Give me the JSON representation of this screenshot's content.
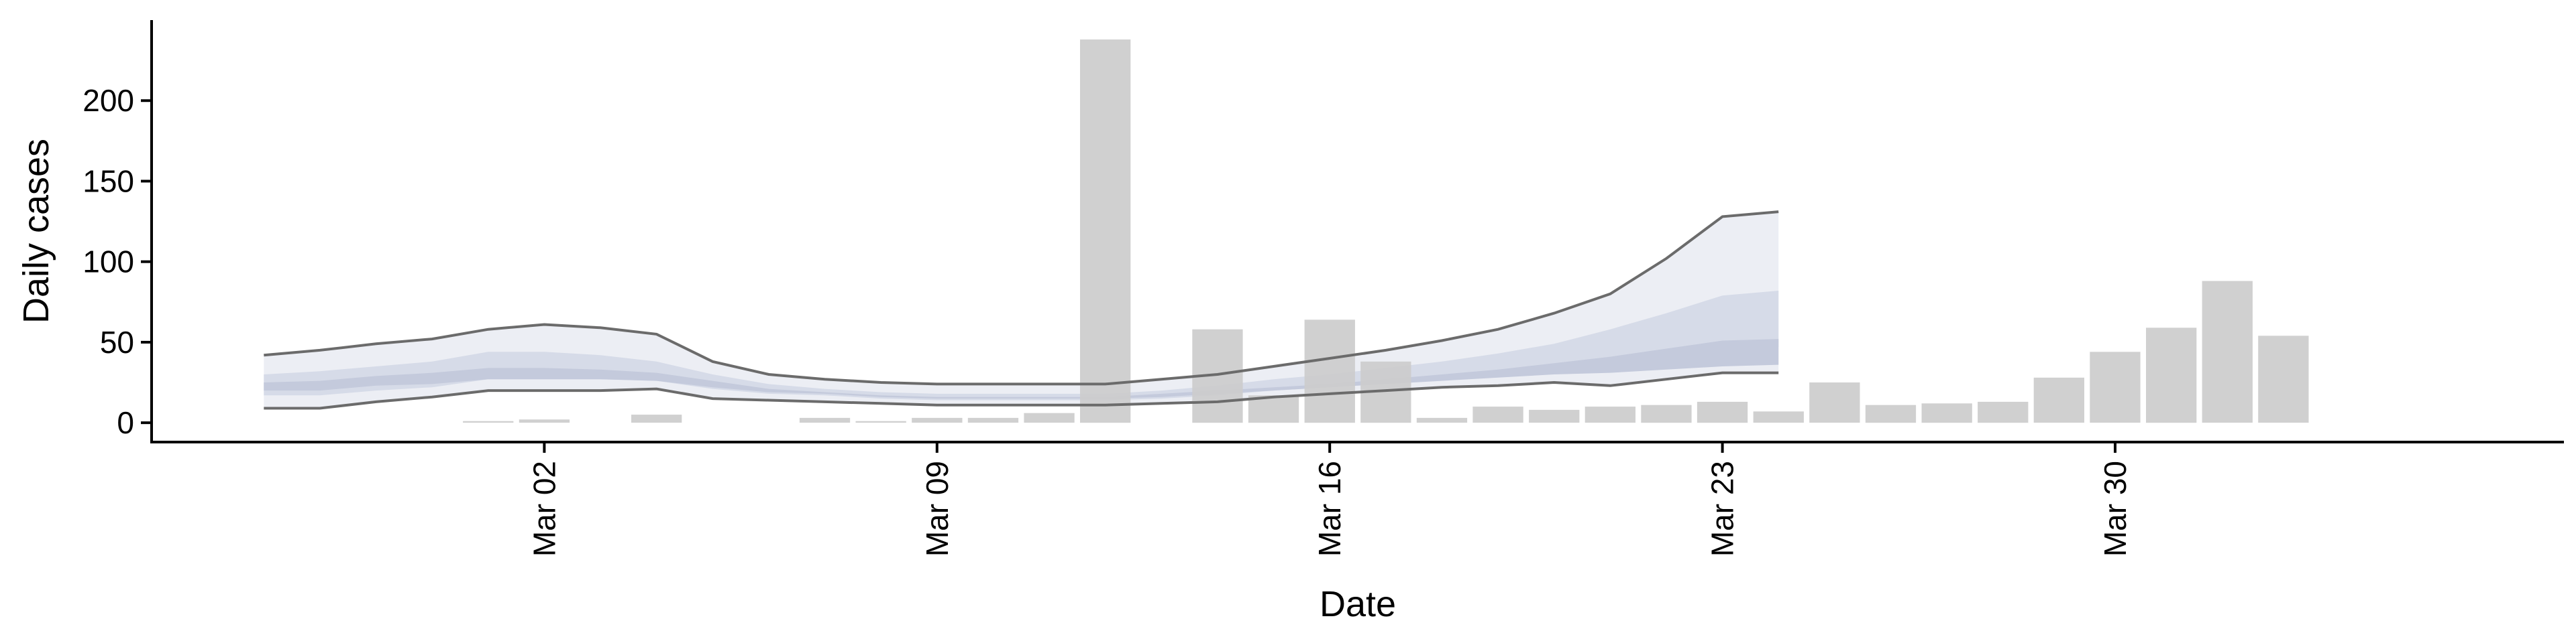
{
  "chart_data": {
    "type": "bar",
    "title": "",
    "xlabel": "Date",
    "ylabel": "Daily cases",
    "x_tick_labels": [
      "Mar 02",
      "Mar 09",
      "Mar 16",
      "Mar 23",
      "Mar 30"
    ],
    "x_tick_dates": [
      "2020-03-02",
      "2020-03-09",
      "2020-03-16",
      "2020-03-23",
      "2020-03-30"
    ],
    "y_ticks": [
      0,
      50,
      100,
      150,
      200
    ],
    "ylim": [
      -12,
      250
    ],
    "xlim": [
      "2020-02-24",
      "2020-04-07"
    ],
    "grid": false,
    "legend": "none",
    "bars": {
      "name": "",
      "color": "#cccccc",
      "dates": [
        "2020-02-27",
        "2020-02-28",
        "2020-03-01",
        "2020-03-02",
        "2020-03-03",
        "2020-03-04",
        "2020-03-05",
        "2020-03-06",
        "2020-03-07",
        "2020-03-08",
        "2020-03-09",
        "2020-03-10",
        "2020-03-11",
        "2020-03-12",
        "2020-03-13",
        "2020-03-14",
        "2020-03-15",
        "2020-03-16",
        "2020-03-17",
        "2020-03-18",
        "2020-03-19",
        "2020-03-20",
        "2020-03-21",
        "2020-03-22",
        "2020-03-23",
        "2020-03-24",
        "2020-03-25",
        "2020-03-26",
        "2020-03-27",
        "2020-03-28",
        "2020-03-29",
        "2020-03-30",
        "2020-03-31",
        "2020-04-01",
        "2020-04-02",
        "2020-04-03"
      ],
      "values": [
        0,
        0,
        1,
        2,
        0,
        5,
        0,
        0,
        3,
        1,
        3,
        3,
        6,
        238,
        0,
        58,
        17,
        64,
        38,
        3,
        10,
        8,
        10,
        11,
        13,
        7,
        25,
        11,
        12,
        13,
        28,
        44,
        59,
        88,
        54,
        0
      ]
    },
    "estimate": {
      "dates": [
        "2020-02-26",
        "2020-02-27",
        "2020-02-28",
        "2020-02-29",
        "2020-03-01",
        "2020-03-02",
        "2020-03-03",
        "2020-03-04",
        "2020-03-05",
        "2020-03-06",
        "2020-03-07",
        "2020-03-08",
        "2020-03-09",
        "2020-03-10",
        "2020-03-11",
        "2020-03-12",
        "2020-03-13",
        "2020-03-14",
        "2020-03-15",
        "2020-03-16",
        "2020-03-17",
        "2020-03-18",
        "2020-03-19",
        "2020-03-20",
        "2020-03-21",
        "2020-03-22",
        "2020-03-23",
        "2020-03-24"
      ],
      "outer_upper": [
        42,
        45,
        49,
        52,
        58,
        61,
        59,
        55,
        38,
        30,
        27,
        25,
        24,
        24,
        24,
        24,
        27,
        30,
        35,
        40,
        45,
        51,
        58,
        68,
        80,
        102,
        128,
        131
      ],
      "outer_lower": [
        9,
        9,
        13,
        16,
        20,
        20,
        20,
        21,
        15,
        14,
        13,
        12,
        11,
        11,
        11,
        11,
        12,
        13,
        16,
        18,
        20,
        22,
        23,
        25,
        23,
        27,
        31,
        31
      ],
      "mid_upper": [
        30,
        32,
        35,
        38,
        44,
        44,
        42,
        38,
        30,
        24,
        21,
        19,
        18,
        18,
        18,
        18,
        20,
        23,
        27,
        30,
        34,
        38,
        43,
        49,
        58,
        68,
        79,
        82
      ],
      "mid_lower": [
        17,
        17,
        20,
        22,
        27,
        27,
        27,
        26,
        21,
        18,
        17,
        15,
        14,
        14,
        14,
        14,
        15,
        17,
        20,
        22,
        25,
        27,
        30,
        33,
        36,
        40,
        45,
        47
      ],
      "inner_upper": [
        25,
        26,
        29,
        31,
        34,
        34,
        33,
        31,
        26,
        21,
        19,
        17,
        16,
        16,
        16,
        16,
        18,
        20,
        22,
        24,
        27,
        30,
        33,
        37,
        41,
        46,
        51,
        52
      ],
      "inner_lower": [
        20,
        20,
        23,
        24,
        27,
        27,
        27,
        26,
        22,
        19,
        18,
        16,
        15,
        15,
        15,
        15,
        16,
        18,
        20,
        22,
        24,
        26,
        28,
        30,
        31,
        33,
        35,
        36
      ]
    }
  }
}
